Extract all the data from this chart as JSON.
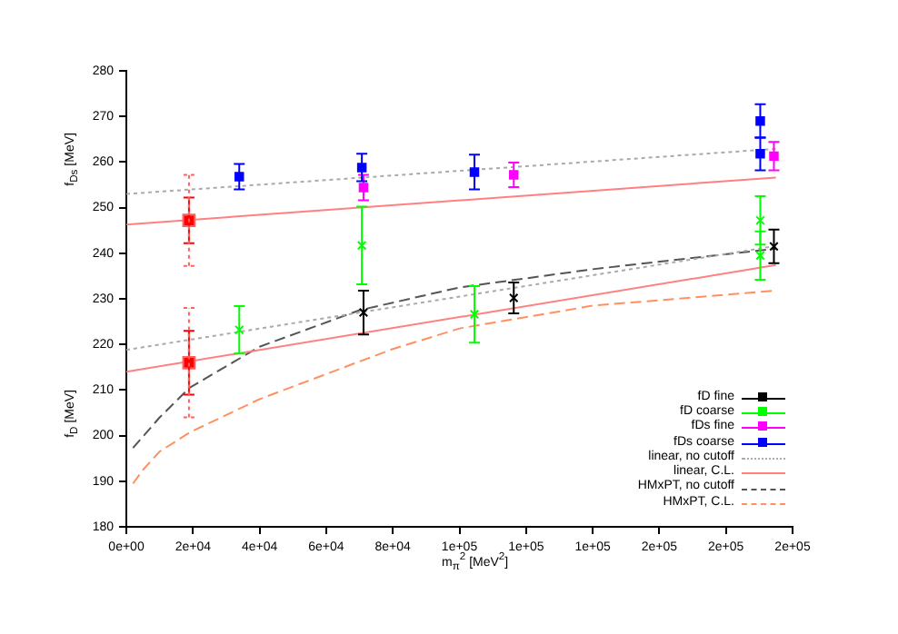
{
  "chart_data": {
    "type": "scatter",
    "xlabel": "m$_{π}$$^{2}$ [MeV$^{2}$]",
    "ylabel": "f$_{D}$ [MeV]",
    "annotations": [
      "f$_{Ds}$ [MeV]"
    ],
    "xlim": [
      0,
      200000
    ],
    "xticks": [
      {
        "value": 0,
        "label": "0e+00"
      },
      {
        "value": 20000,
        "label": "2e+04"
      },
      {
        "value": 40000,
        "label": "4e+04"
      },
      {
        "value": 60000,
        "label": "6e+04"
      },
      {
        "value": 80000,
        "label": "8e+04"
      },
      {
        "value": 100000,
        "label": "1e+05"
      },
      {
        "value": 120000,
        "label": "1e+05"
      },
      {
        "value": 140000,
        "label": "1e+05"
      },
      {
        "value": 160000,
        "label": "2e+05"
      },
      {
        "value": 180000,
        "label": "2e+05"
      },
      {
        "value": 200000,
        "label": "2e+05"
      }
    ],
    "ylim": [
      180,
      280
    ],
    "yticks": [
      180,
      190,
      200,
      210,
      220,
      230,
      240,
      250,
      260,
      270,
      280
    ],
    "grid": false,
    "legend": "bottom right",
    "series": [
      {
        "name": "fD fine",
        "type": "scatter",
        "color": "#000000",
        "marker": "cross",
        "x": [
          71200,
          116300,
          194400
        ],
        "values": [
          227,
          230.2,
          241.5
        ],
        "errors": [
          4.8,
          3.4,
          3.7
        ]
      },
      {
        "name": "fD coarse",
        "type": "scatter",
        "color": "#00ff00",
        "marker": "cross",
        "x": [
          33900,
          70700,
          104500,
          190300,
          190300
        ],
        "values": [
          223.2,
          241.7,
          226.6,
          247.2,
          239.5
        ],
        "errors": [
          5.2,
          8.5,
          6.2,
          5.3,
          5.3
        ]
      },
      {
        "name": "fDs fine",
        "type": "scatter",
        "color": "#ff00ff",
        "marker": "square",
        "x": [
          71200,
          116300,
          194400
        ],
        "values": [
          254.4,
          257.2,
          261.3
        ],
        "errors": [
          2.8,
          2.7,
          3.1
        ]
      },
      {
        "name": "fDs coarse",
        "type": "scatter",
        "color": "#0000ff",
        "marker": "square",
        "x": [
          33900,
          70700,
          104500,
          190300,
          190300
        ],
        "values": [
          256.8,
          258.8,
          257.8,
          269,
          261.8
        ],
        "errors": [
          2.8,
          3,
          3.8,
          3.7,
          3.6
        ]
      },
      {
        "type": "scatter",
        "color": "#ff0000",
        "marker": "square",
        "x": [
          18800,
          18800
        ],
        "values": [
          247.2,
          216
        ],
        "errors": [
          5,
          7
        ]
      },
      {
        "type": "scatter",
        "color": "#ff6060",
        "marker": "square",
        "line_style": "dotted",
        "x": [
          18800,
          18800
        ],
        "values": [
          247.2,
          216
        ],
        "errors": [
          10,
          12
        ]
      },
      {
        "name": "linear, no cutoff",
        "type": "line",
        "color": "#aaaaaa",
        "line_style": "dotted",
        "x": [
          0,
          195000
        ],
        "values": [
          253,
          262.9
        ]
      },
      {
        "type": "line",
        "color": "#aaaaaa",
        "line_style": "dotted",
        "x": [
          0,
          195000
        ],
        "values": [
          218.8,
          241.6
        ]
      },
      {
        "name": "linear, C.L.",
        "type": "line",
        "color": "#ff8080",
        "line_style": "solid",
        "x": [
          0,
          195000
        ],
        "values": [
          246.3,
          256.6
        ]
      },
      {
        "type": "line",
        "color": "#ff8080",
        "line_style": "solid",
        "x": [
          0,
          195000
        ],
        "values": [
          214,
          237.4
        ]
      },
      {
        "name": "HMxPT, no cutoff",
        "type": "line",
        "color": "#555555",
        "line_style": "dashed",
        "x": [
          2000,
          10000,
          19000,
          40000,
          70000,
          100000,
          140000,
          195000
        ],
        "values": [
          197.3,
          204,
          210.5,
          219.5,
          227.5,
          232.5,
          236.5,
          241
        ]
      },
      {
        "name": "HMxPT, C.L.",
        "type": "line",
        "color": "#ff9060",
        "line_style": "dashed",
        "x": [
          2000,
          5000,
          10000,
          19000,
          40000,
          60000,
          80000,
          100000,
          140000,
          195000
        ],
        "values": [
          189.5,
          192.5,
          196.5,
          200.7,
          208,
          213.5,
          219,
          223.5,
          228.5,
          231.8
        ]
      }
    ]
  }
}
